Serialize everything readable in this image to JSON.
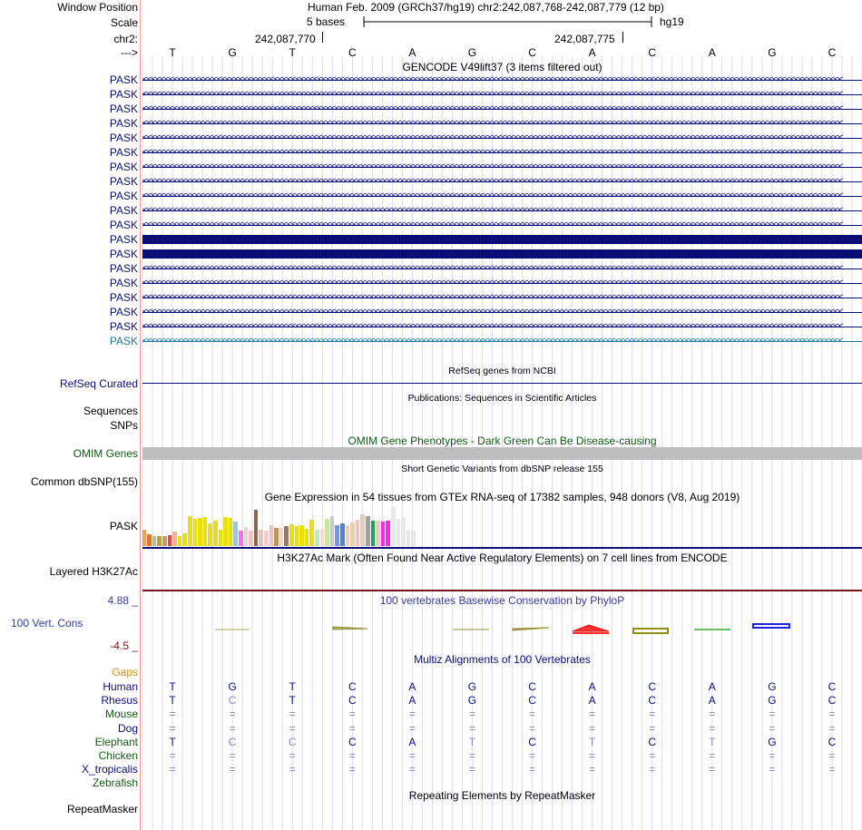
{
  "header": {
    "window_position_label": "Window Position",
    "scale_label": "Scale",
    "chrom_label": "chr2:",
    "arrow_label": "--->",
    "assembly_text": "Human Feb. 2009 (GRCh37/hg19)   chr2:242,087,768-242,087,779 (12 bp)",
    "scale_text": "5 bases",
    "db": "hg19",
    "pos1": "242,087,770",
    "pos2": "242,087,775"
  },
  "sequence": [
    "T",
    "G",
    "T",
    "C",
    "A",
    "G",
    "C",
    "A",
    "C",
    "A",
    "G",
    "C"
  ],
  "gencode": {
    "title": "GENCODE V49lift37 (3 items filtered out)",
    "genes": [
      {
        "name": "PASK",
        "style": "arrows"
      },
      {
        "name": "PASK",
        "style": "arrows"
      },
      {
        "name": "PASK",
        "style": "arrows"
      },
      {
        "name": "PASK",
        "style": "arrows"
      },
      {
        "name": "PASK",
        "style": "arrows"
      },
      {
        "name": "PASK",
        "style": "arrows"
      },
      {
        "name": "PASK",
        "style": "arrows"
      },
      {
        "name": "PASK",
        "style": "arrows"
      },
      {
        "name": "PASK",
        "style": "arrows"
      },
      {
        "name": "PASK",
        "style": "arrows"
      },
      {
        "name": "PASK",
        "style": "arrows"
      },
      {
        "name": "PASK",
        "style": "thick"
      },
      {
        "name": "PASK",
        "style": "thick"
      },
      {
        "name": "PASK",
        "style": "arrows"
      },
      {
        "name": "PASK",
        "style": "arrows"
      },
      {
        "name": "PASK",
        "style": "arrows"
      },
      {
        "name": "PASK",
        "style": "arrows"
      },
      {
        "name": "PASK",
        "style": "arrows"
      },
      {
        "name": "PASK",
        "style": "arrows-teal"
      }
    ]
  },
  "refseq": {
    "title": "RefSeq genes from NCBI",
    "label": "RefSeq Curated"
  },
  "publications": {
    "title": "Publications: Sequences in Scientific Articles",
    "label1": "Sequences",
    "label2": "SNPs"
  },
  "omim": {
    "title": "OMIM Gene Phenotypes - Dark Green Can Be Disease-causing",
    "label": "OMIM Genes"
  },
  "dbsnp": {
    "title": "Short Genetic Variants from dbSNP release 155",
    "label": "Common dbSNP(155)"
  },
  "gtex": {
    "title": "Gene Expression in 54 tissues from GTEx RNA-seq of 17382 samples, 948 donors (V8, Aug 2019)",
    "label": "PASK",
    "levels": [
      0.4,
      0.28,
      0.24,
      0.25,
      0.25,
      0.26,
      0.35,
      0.24,
      0.3,
      0.72,
      0.65,
      0.68,
      0.7,
      0.54,
      0.6,
      0.4,
      0.7,
      0.68,
      0.58,
      0.38,
      0.46,
      0.36,
      0.86,
      0.4,
      0.38,
      0.5,
      0.44,
      0.44,
      0.48,
      0.52,
      0.48,
      0.5,
      0.42,
      0.64,
      0.4,
      0.42,
      0.66,
      0.72,
      0.5,
      0.54,
      0.5,
      0.56,
      0.64,
      0.76,
      0.72,
      0.6,
      0.6,
      0.58,
      0.6,
      0.94,
      0.66,
      0.7,
      0.4,
      0.36
    ],
    "colors": [
      "#f3a25b",
      "#d97a3b",
      "#a4c89a",
      "#c8a030",
      "#c0a35a",
      "#e04747",
      "#e8b8a0",
      "#e8e010",
      "#e8e010",
      "#e8e010",
      "#e8e010",
      "#e8e010",
      "#e8e010",
      "#e8e010",
      "#e8e010",
      "#e8e010",
      "#e8e010",
      "#e8e010",
      "#98c8d8",
      "#f070f0",
      "#f0d0d0",
      "#e8c8c8",
      "#8a6a4a",
      "#e8c0c0",
      "#ffc8c8",
      "#f0c0c0",
      "#b89860",
      "#f0d8c8",
      "#9a7a5a",
      "#e8e010",
      "#e8e010",
      "#e8e010",
      "#e8e010",
      "#e8e010",
      "#c0e8b0",
      "#ffd8d8",
      "#c8e8a0",
      "#c8c8d0",
      "#6898f0",
      "#5080e0",
      "#f0d0b0",
      "#e8d0b0",
      "#e8c8c0",
      "#f0c8b8",
      "#a0a0a0",
      "#20a060",
      "#e8d0b8",
      "#ff20ff",
      "#ff20f0",
      "#e8e8e8",
      "#e8e8e8",
      "#e8e8e8",
      "#e8e8e8",
      "#e8e8e8"
    ]
  },
  "h3k27ac": {
    "title": "H3K27Ac Mark (Often Found Near Active Regulatory Elements) on 7 cell lines from ENCODE",
    "label": "Layered H3K27Ac"
  },
  "conservation": {
    "title": "100 vertebrates Basewise Conservation by PhyloP",
    "label": "100 Vert. Cons",
    "max": "4.88 _",
    "min": "-4.5 _"
  },
  "multiz": {
    "title": "Multiz Alignments of 100 Vertebrates",
    "gaps_label": "Gaps",
    "species": [
      {
        "name": "Human",
        "color": "#0c0c78",
        "bases": [
          "T",
          "G",
          "T",
          "C",
          "A",
          "G",
          "C",
          "A",
          "C",
          "A",
          "G",
          "C"
        ]
      },
      {
        "name": "Rhesus",
        "color": "#0c0c78",
        "bases": [
          "T",
          "C",
          "T",
          "C",
          "A",
          "G",
          "C",
          "A",
          "C",
          "A",
          "G",
          "C"
        ]
      },
      {
        "name": "Mouse",
        "color": "#145a14",
        "bases": [
          "=",
          "=",
          "=",
          "=",
          "=",
          "=",
          "=",
          "=",
          "=",
          "=",
          "=",
          "="
        ]
      },
      {
        "name": "Dog",
        "color": "#0c0c78",
        "bases": [
          "=",
          "=",
          "=",
          "=",
          "=",
          "=",
          "=",
          "=",
          "=",
          "=",
          "=",
          "="
        ]
      },
      {
        "name": "Elephant",
        "color": "#145a14",
        "bases": [
          "T",
          "C",
          "C",
          "C",
          "A",
          "T",
          "C",
          "T",
          "C",
          "T",
          "G",
          "C"
        ]
      },
      {
        "name": "Chicken",
        "color": "#145a14",
        "bases": [
          "=",
          "=",
          "=",
          "=",
          "=",
          "=",
          "=",
          "=",
          "=",
          "=",
          "=",
          "="
        ]
      },
      {
        "name": "X_tropicalis",
        "color": "#0c0c78",
        "bases": [
          "=",
          "=",
          "=",
          "=",
          "=",
          "=",
          "=",
          "=",
          "=",
          "=",
          "=",
          "="
        ]
      },
      {
        "name": "Zebrafish",
        "color": "#145a14",
        "bases": [
          "",
          "",
          "",
          "",
          "",
          "",
          "",
          "",
          "",
          "",
          "",
          ""
        ]
      }
    ]
  },
  "repeatmasker": {
    "title": "Repeating Elements by RepeatMasker",
    "label": "RepeatMasker"
  }
}
